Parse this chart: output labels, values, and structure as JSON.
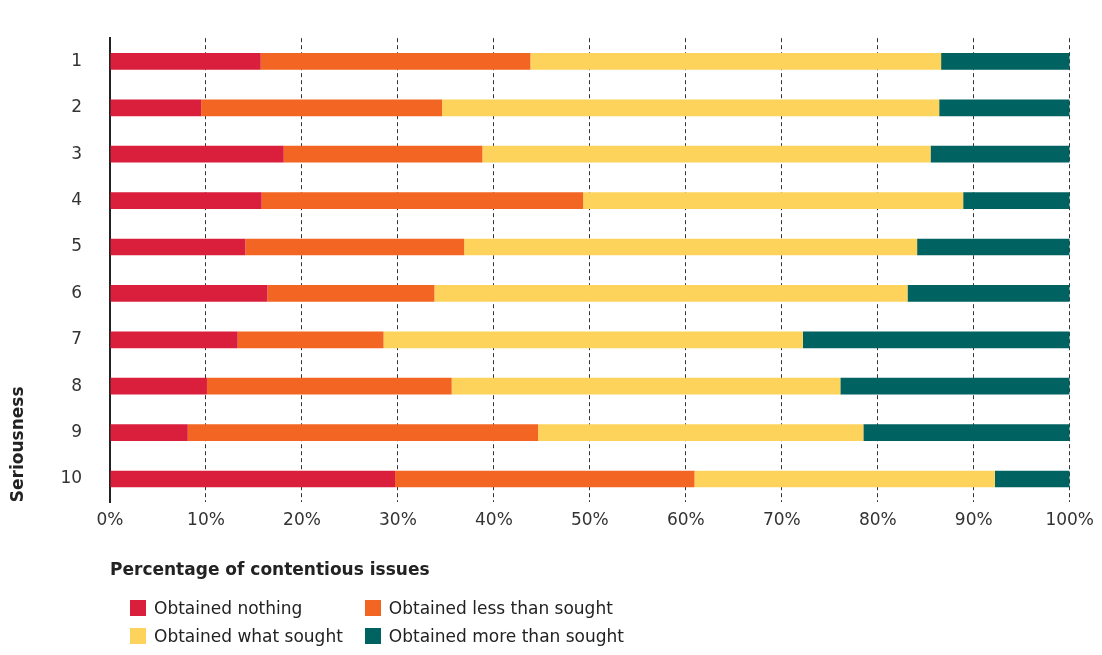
{
  "chart_data": {
    "type": "bar",
    "orientation": "horizontal",
    "stacked": true,
    "xlabel": "Percentage of contentious issues",
    "ylabel": "Seriousness",
    "categories": [
      "1",
      "2",
      "3",
      "4",
      "5",
      "6",
      "7",
      "8",
      "9",
      "10"
    ],
    "series": [
      {
        "name": "Obtained nothing",
        "color": "#d91f3c",
        "values": [
          15.7,
          9.5,
          18.1,
          15.8,
          14.1,
          16.4,
          13.3,
          10.1,
          8.1,
          29.7
        ]
      },
      {
        "name": "Obtained less than sought",
        "color": "#f26522",
        "values": [
          28.1,
          25.1,
          20.7,
          33.5,
          22.8,
          17.4,
          15.2,
          25.5,
          36.5,
          31.2
        ]
      },
      {
        "name": "Obtained what sought",
        "color": "#fed35c",
        "values": [
          42.8,
          51.8,
          46.7,
          39.6,
          47.2,
          49.3,
          43.7,
          40.5,
          33.9,
          31.3
        ]
      },
      {
        "name": "Obtained more than sought",
        "color": "#006261",
        "values": [
          13.4,
          13.6,
          14.5,
          11.1,
          15.9,
          16.9,
          27.8,
          23.9,
          21.5,
          7.8
        ]
      }
    ],
    "xlim": [
      0,
      100
    ],
    "xticks": [
      {
        "value": 0,
        "label": "0%"
      },
      {
        "value": 10,
        "label": "10%"
      },
      {
        "value": 20,
        "label": "20%"
      },
      {
        "value": 30,
        "label": "30%"
      },
      {
        "value": 40,
        "label": "40%"
      },
      {
        "value": 50,
        "label": "50%"
      },
      {
        "value": 60,
        "label": "60%"
      },
      {
        "value": 70,
        "label": "70%"
      },
      {
        "value": 80,
        "label": "80%"
      },
      {
        "value": 90,
        "label": "90%"
      },
      {
        "value": 100,
        "label": "100%"
      }
    ],
    "grid": "x",
    "legend": "bottom"
  }
}
